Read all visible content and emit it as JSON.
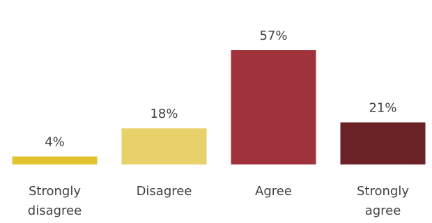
{
  "chart_data": {
    "type": "bar",
    "categories": [
      "Strongly disagree",
      "Disagree",
      "Agree",
      "Strongly agree"
    ],
    "values": [
      4,
      18,
      57,
      21
    ],
    "value_labels": [
      "4%",
      "18%",
      "57%",
      "21%"
    ],
    "colors": [
      "#e3c232",
      "#e8d16b",
      "#a0323c",
      "#6b2226"
    ]
  }
}
